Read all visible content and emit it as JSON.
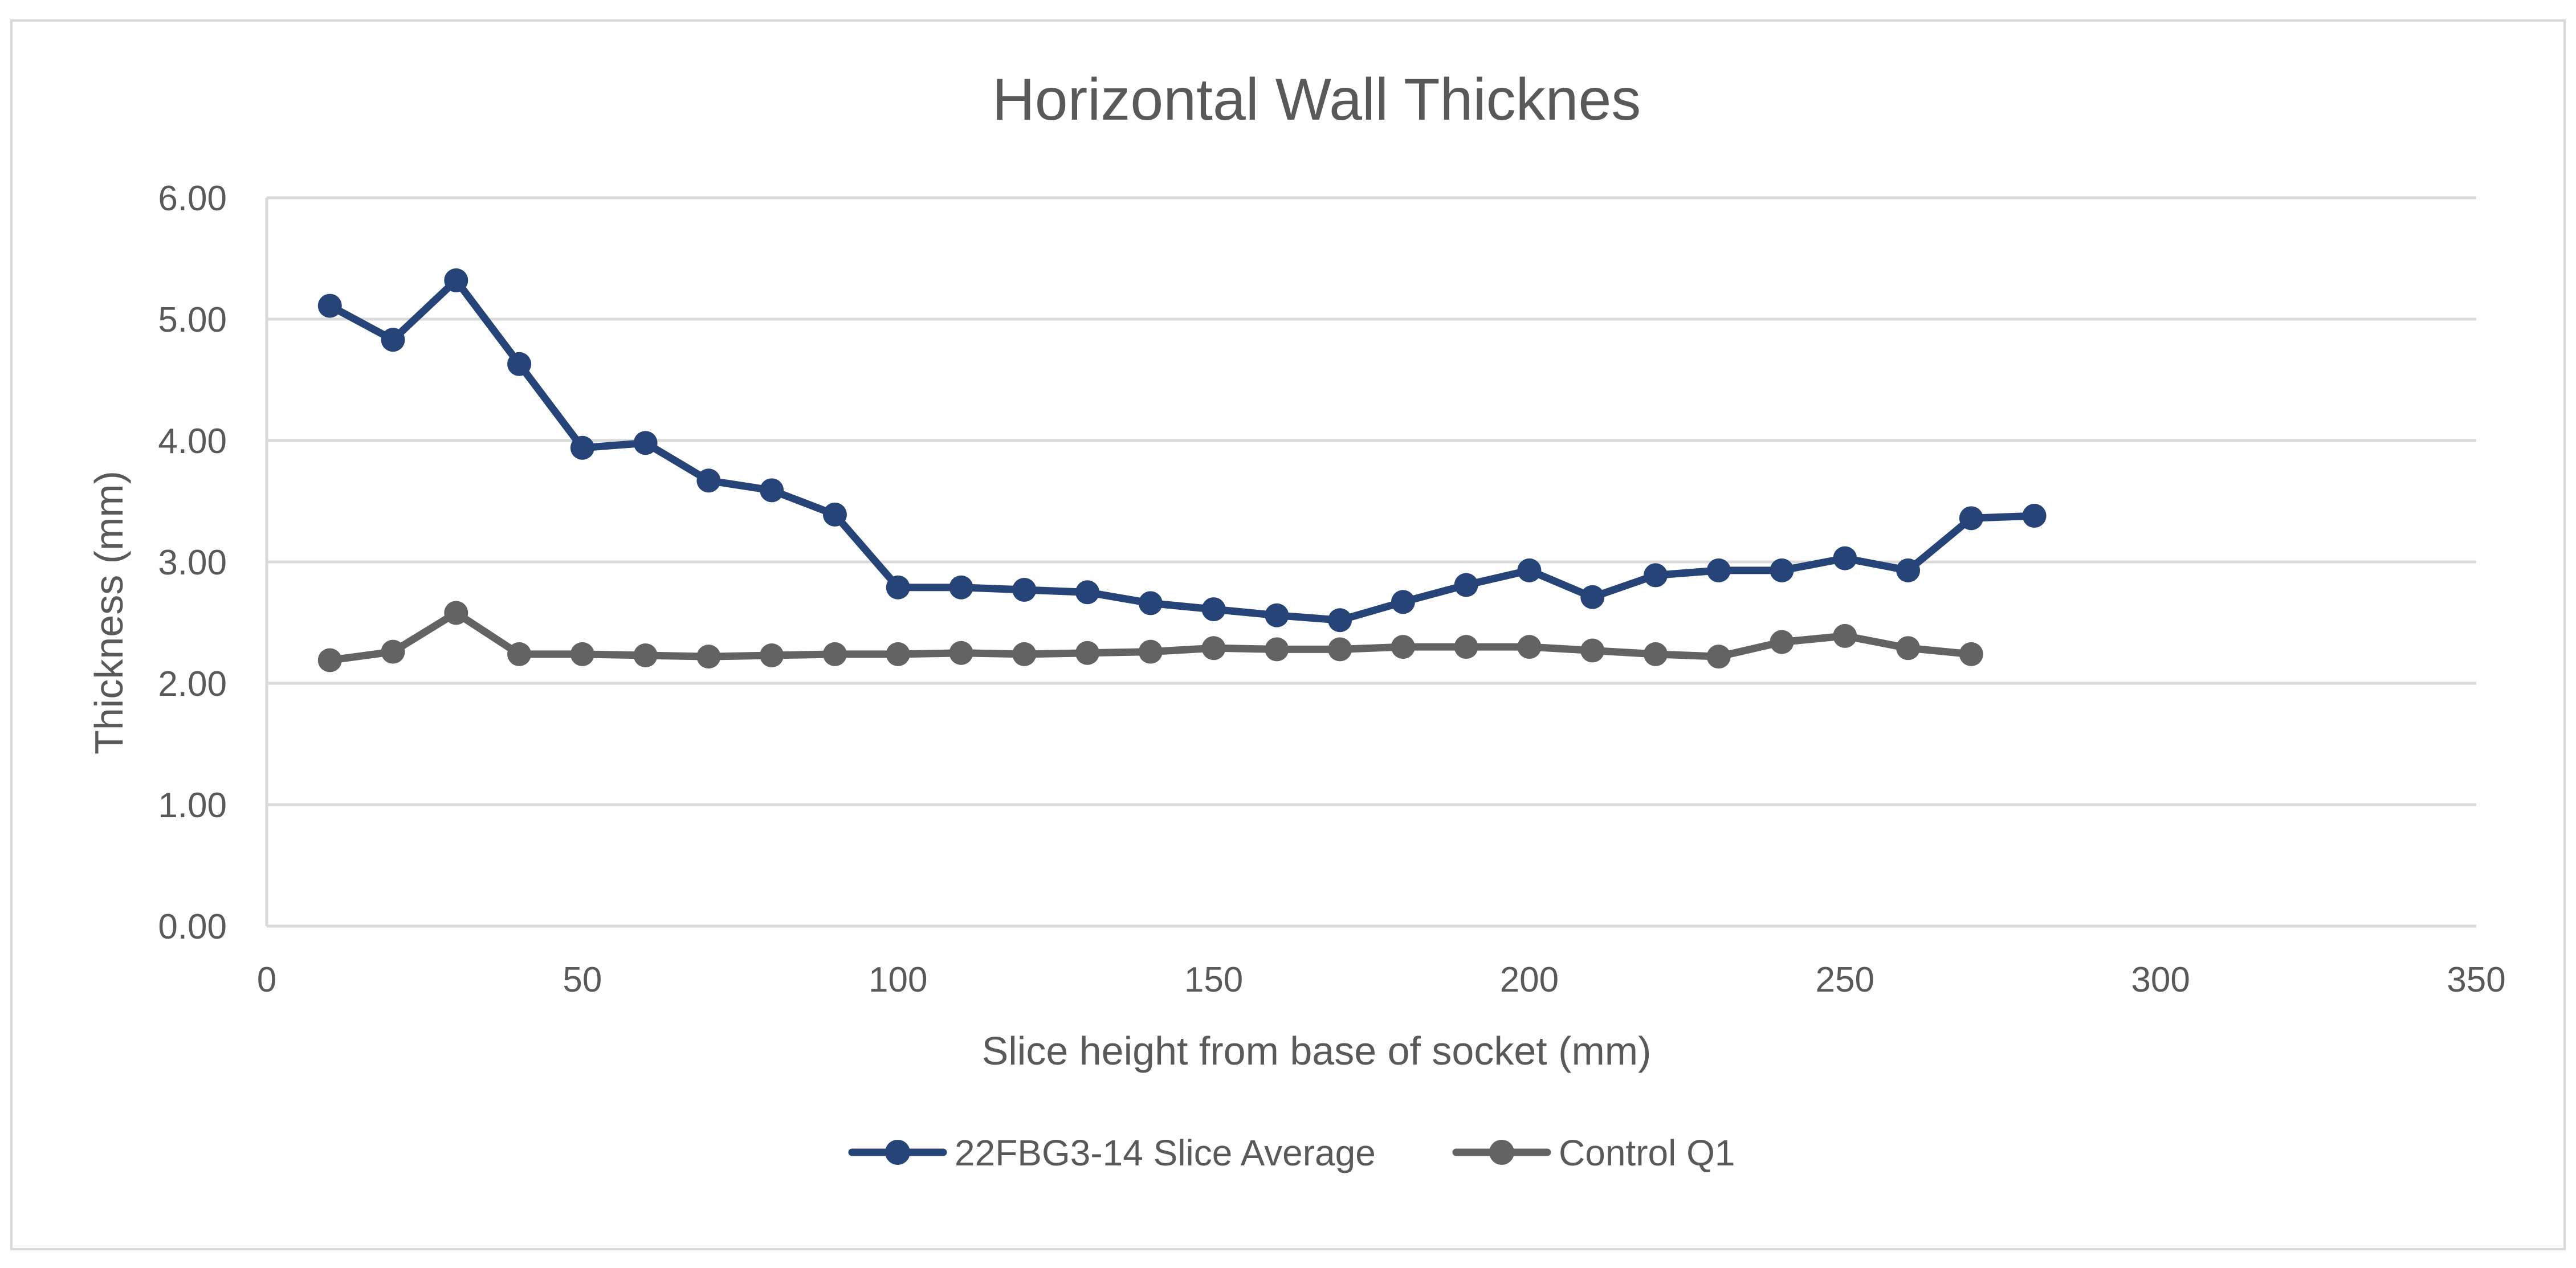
{
  "chart_data": {
    "type": "line",
    "title": "Horizontal Wall Thicknes",
    "xlabel": "Slice height from base of socket (mm)",
    "ylabel": "Thickness (mm)",
    "xlim": [
      0,
      350
    ],
    "ylim": [
      0,
      6
    ],
    "x_ticks": [
      0,
      50,
      100,
      150,
      200,
      250,
      300,
      350
    ],
    "y_ticks": [
      0,
      1,
      2,
      3,
      4,
      5,
      6
    ],
    "x_tick_labels": [
      "0",
      "50",
      "100",
      "150",
      "200",
      "250",
      "300",
      "350"
    ],
    "y_tick_labels": [
      "0.00",
      "1.00",
      "2.00",
      "3.00",
      "4.00",
      "5.00",
      "6.00"
    ],
    "grid": "horizontal",
    "legend_position": "bottom",
    "series": [
      {
        "name": "22FBG3-14 Slice Average",
        "color": "#264478",
        "x": [
          10,
          20,
          30,
          40,
          50,
          60,
          70,
          80,
          90,
          100,
          110,
          120,
          130,
          140,
          150,
          160,
          170,
          180,
          190,
          200,
          210,
          220,
          230,
          240,
          250,
          260,
          270,
          280
        ],
        "values": [
          5.11,
          4.83,
          5.32,
          4.63,
          3.94,
          3.98,
          3.67,
          3.59,
          3.39,
          2.79,
          2.79,
          2.77,
          2.75,
          2.66,
          2.61,
          2.56,
          2.52,
          2.67,
          2.81,
          2.93,
          2.71,
          2.89,
          2.93,
          2.93,
          3.03,
          2.93,
          3.36,
          3.38
        ]
      },
      {
        "name": "Control Q1",
        "color": "#636363",
        "x": [
          10,
          20,
          30,
          40,
          50,
          60,
          70,
          80,
          90,
          100,
          110,
          120,
          130,
          140,
          150,
          160,
          170,
          180,
          190,
          200,
          210,
          220,
          230,
          240,
          250,
          260,
          270
        ],
        "values": [
          2.19,
          2.26,
          2.58,
          2.24,
          2.24,
          2.23,
          2.22,
          2.23,
          2.24,
          2.24,
          2.25,
          2.24,
          2.25,
          2.26,
          2.29,
          2.28,
          2.28,
          2.3,
          2.3,
          2.3,
          2.27,
          2.24,
          2.22,
          2.34,
          2.39,
          2.29,
          2.24
        ]
      }
    ]
  }
}
